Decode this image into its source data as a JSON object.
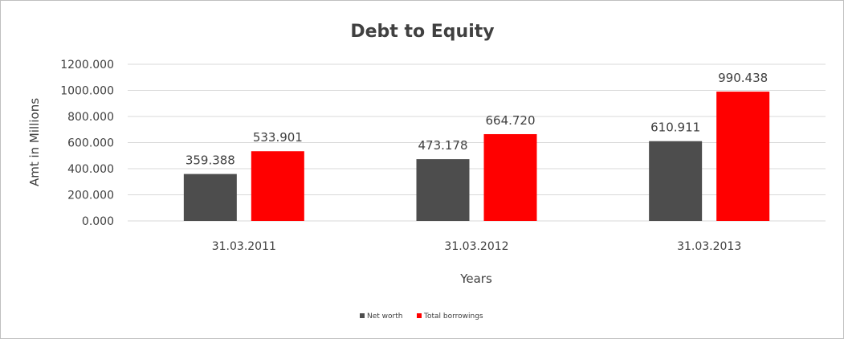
{
  "chart_data": {
    "type": "bar",
    "title": "Debt to Equity",
    "xlabel": "Years",
    "ylabel": "Amt in Millions",
    "categories": [
      "31.03.2011",
      "31.03.2012",
      "31.03.2013"
    ],
    "series": [
      {
        "name": "Net worth",
        "values": [
          359.388,
          473.178,
          610.911
        ],
        "color": "#4d4d4d"
      },
      {
        "name": "Total borrowings",
        "values": [
          533.901,
          664.72,
          990.438
        ],
        "color": "#ff0000"
      }
    ],
    "value_labels": [
      [
        "359.388",
        "473.178",
        "610.911"
      ],
      [
        "533.901",
        "664.720",
        "990.438"
      ]
    ],
    "yticks": [
      "0.000",
      "200.000",
      "400.000",
      "600.000",
      "800.000",
      "1000.000",
      "1200.000"
    ],
    "ylim": [
      0,
      1200
    ],
    "grid": true,
    "legend_position": "bottom"
  }
}
